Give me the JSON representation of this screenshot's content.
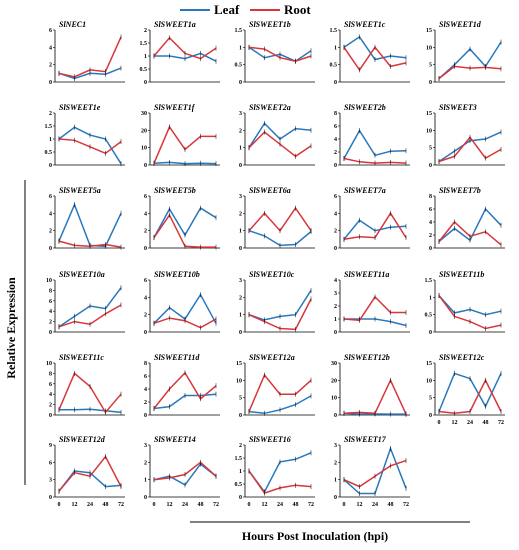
{
  "chart_data": {
    "type": "line",
    "legend": {
      "placement": "top-right",
      "entries": [
        {
          "name": "Leaf",
          "color": "#2878bd"
        },
        {
          "name": "Root",
          "color": "#d9363b"
        }
      ]
    },
    "ylabel": "Relative  Expression",
    "xlabel": "Hours Post Inoculation (hpi)",
    "x": [
      "0",
      "12",
      "24",
      "48",
      "72"
    ],
    "colors": {
      "leaf": "#2878bd",
      "root": "#d9363b"
    },
    "grid": false,
    "panels": [
      {
        "title": "SlNEC1",
        "yticks": [
          0,
          2,
          4,
          6
        ],
        "ylim": [
          0,
          6
        ],
        "leaf": [
          1.0,
          0.4,
          1.0,
          0.9,
          1.6
        ],
        "root": [
          1.0,
          0.6,
          1.4,
          1.2,
          5.2
        ]
      },
      {
        "title": "SlSWEET1a",
        "yticks": [
          0,
          0.5,
          1,
          1.5,
          2
        ],
        "ylim": [
          0,
          2
        ],
        "leaf": [
          1.0,
          1.0,
          0.9,
          1.1,
          0.8
        ],
        "root": [
          1.0,
          1.7,
          1.1,
          0.9,
          1.3
        ]
      },
      {
        "title": "SlSWEET1b",
        "yticks": [
          0,
          0.5,
          1,
          1.5
        ],
        "ylim": [
          0,
          1.5
        ],
        "leaf": [
          1.0,
          0.7,
          0.8,
          0.6,
          0.9
        ],
        "root": [
          1.0,
          0.95,
          0.7,
          0.6,
          0.75
        ]
      },
      {
        "title": "SlSWEET1c",
        "yticks": [
          0,
          0.5,
          1,
          1.5
        ],
        "ylim": [
          0,
          1.5
        ],
        "leaf": [
          1.0,
          1.3,
          0.65,
          0.75,
          0.7
        ],
        "root": [
          1.0,
          0.35,
          1.0,
          0.45,
          0.55
        ]
      },
      {
        "title": "SlSWEET1d",
        "yticks": [
          0,
          5,
          10,
          15
        ],
        "ylim": [
          0,
          15
        ],
        "leaf": [
          1.0,
          5.0,
          9.5,
          4.5,
          11.5
        ],
        "root": [
          1.0,
          4.5,
          4.0,
          4.2,
          3.8
        ]
      },
      {
        "title": "SlSWEET1e",
        "yticks": [
          0,
          0.5,
          1,
          1.5,
          2
        ],
        "ylim": [
          0,
          2
        ],
        "leaf": [
          1.0,
          1.45,
          1.15,
          1.0,
          0.05
        ],
        "root": [
          1.0,
          0.95,
          0.7,
          0.45,
          0.9
        ]
      },
      {
        "title": "SlSWEET1f",
        "yticks": [
          0,
          10,
          20,
          30
        ],
        "ylim": [
          0,
          30
        ],
        "leaf": [
          1.0,
          1.5,
          0.8,
          1.0,
          0.8
        ],
        "root": [
          1.0,
          22.0,
          9.0,
          16.5,
          16.5
        ]
      },
      {
        "title": "SlSWEET2a",
        "yticks": [
          0,
          1,
          2,
          3
        ],
        "ylim": [
          0,
          3
        ],
        "leaf": [
          1.0,
          2.4,
          1.5,
          2.1,
          2.0
        ],
        "root": [
          1.0,
          1.9,
          1.2,
          0.5,
          1.1
        ]
      },
      {
        "title": "SlSWEET2b",
        "yticks": [
          0,
          2,
          4,
          6,
          8
        ],
        "ylim": [
          0,
          8
        ],
        "leaf": [
          1.0,
          5.3,
          1.5,
          2.1,
          2.2
        ],
        "root": [
          1.0,
          0.5,
          0.3,
          0.4,
          0.3
        ]
      },
      {
        "title": "SlSWEET3",
        "yticks": [
          0,
          5,
          10,
          15
        ],
        "ylim": [
          0,
          15
        ],
        "leaf": [
          1.0,
          4.0,
          7.0,
          7.5,
          9.5
        ],
        "root": [
          1.0,
          2.5,
          8.0,
          2.0,
          4.5
        ]
      },
      {
        "title": "SlSWEET5a",
        "yticks": [
          0,
          2,
          4,
          6
        ],
        "ylim": [
          0,
          6
        ],
        "leaf": [
          0.8,
          5.0,
          0.3,
          0.2,
          4.0
        ],
        "root": [
          0.8,
          0.3,
          0.2,
          0.4,
          0.1
        ]
      },
      {
        "title": "SlSWEET5b",
        "yticks": [
          0,
          2,
          4,
          6
        ],
        "ylim": [
          0,
          6
        ],
        "leaf": [
          1.2,
          4.5,
          1.5,
          4.6,
          3.5
        ],
        "root": [
          1.2,
          3.8,
          0.2,
          0.1,
          0.1
        ]
      },
      {
        "title": "SlSWEET6a",
        "yticks": [
          0,
          1,
          2,
          3
        ],
        "ylim": [
          0,
          3
        ],
        "leaf": [
          1.0,
          0.7,
          0.15,
          0.2,
          0.95
        ],
        "root": [
          1.0,
          2.0,
          1.0,
          2.3,
          1.0
        ]
      },
      {
        "title": "SlSWEET7a",
        "yticks": [
          0,
          2,
          4,
          6
        ],
        "ylim": [
          0,
          6
        ],
        "leaf": [
          1.0,
          3.2,
          2.0,
          2.4,
          2.5
        ],
        "root": [
          1.0,
          1.3,
          1.2,
          4.0,
          1.2
        ]
      },
      {
        "title": "SlSWEET7b",
        "yticks": [
          0,
          2,
          4,
          6,
          8
        ],
        "ylim": [
          0,
          8
        ],
        "leaf": [
          1.0,
          3.0,
          1.2,
          6.0,
          3.5
        ],
        "root": [
          1.0,
          4.0,
          1.8,
          2.5,
          0.5
        ]
      },
      {
        "title": "SlSWEET10a",
        "yticks": [
          0,
          2,
          4,
          6,
          8,
          10
        ],
        "ylim": [
          0,
          10
        ],
        "leaf": [
          1.0,
          3.0,
          5.0,
          4.5,
          8.5
        ],
        "root": [
          1.0,
          2.0,
          1.5,
          3.5,
          5.2
        ]
      },
      {
        "title": "SlSWEET10b",
        "yticks": [
          0,
          2,
          4,
          6
        ],
        "ylim": [
          0,
          6
        ],
        "leaf": [
          1.0,
          2.8,
          1.5,
          4.3,
          1.0
        ],
        "root": [
          1.0,
          1.6,
          1.3,
          0.5,
          1.5
        ]
      },
      {
        "title": "SlSWEET10c",
        "yticks": [
          0,
          1,
          2,
          3
        ],
        "ylim": [
          0,
          3
        ],
        "leaf": [
          1.0,
          0.7,
          0.9,
          1.0,
          2.4
        ],
        "root": [
          1.0,
          0.6,
          0.2,
          0.15,
          1.9
        ]
      },
      {
        "title": "SlSWEET11a",
        "yticks": [
          0,
          1,
          2,
          3,
          4
        ],
        "ylim": [
          0,
          4
        ],
        "leaf": [
          1.0,
          1.0,
          1.0,
          0.8,
          0.5
        ],
        "root": [
          1.0,
          0.9,
          2.7,
          1.5,
          1.5
        ]
      },
      {
        "title": "SlSWEET11b",
        "yticks": [
          0,
          0.5,
          1,
          1.5
        ],
        "ylim": [
          0,
          1.5
        ],
        "leaf": [
          1.05,
          0.55,
          0.65,
          0.5,
          0.6
        ],
        "root": [
          1.05,
          0.45,
          0.3,
          0.1,
          0.2
        ]
      },
      {
        "title": "SlSWEET11c",
        "yticks": [
          0,
          2,
          4,
          6,
          8,
          10
        ],
        "ylim": [
          0,
          10
        ],
        "leaf": [
          1.0,
          1.0,
          1.1,
          0.8,
          0.5
        ],
        "root": [
          1.0,
          8.0,
          5.5,
          0.5,
          4.0
        ]
      },
      {
        "title": "SlSWEET11d",
        "yticks": [
          0,
          2,
          4,
          6,
          8
        ],
        "ylim": [
          0,
          8
        ],
        "leaf": [
          1.0,
          1.3,
          3.0,
          3.0,
          3.2
        ],
        "root": [
          1.0,
          4.0,
          6.5,
          2.5,
          4.5
        ]
      },
      {
        "title": "SlSWEET12a",
        "yticks": [
          0,
          5,
          10,
          15
        ],
        "ylim": [
          0,
          15
        ],
        "leaf": [
          1.0,
          0.5,
          1.5,
          3.0,
          5.5
        ],
        "root": [
          1.0,
          11.5,
          6.0,
          6.0,
          10.0
        ]
      },
      {
        "title": "SlSWEET12b",
        "yticks": [
          0,
          10,
          20,
          30
        ],
        "ylim": [
          0,
          30
        ],
        "leaf": [
          1.0,
          0.5,
          0.6,
          0.5,
          0.5
        ],
        "root": [
          1.0,
          1.5,
          1.0,
          20.0,
          0.5
        ]
      },
      {
        "title": "SlSWEET12c",
        "yticks": [
          0,
          5,
          10,
          15
        ],
        "ylim": [
          0,
          15
        ],
        "leaf": [
          1.0,
          12.0,
          10.5,
          2.5,
          12.0
        ],
        "root": [
          1.0,
          0.5,
          1.0,
          10.0,
          1.0
        ]
      },
      {
        "title": "SlSWEET12d",
        "yticks": [
          0,
          3,
          6,
          9
        ],
        "ylim": [
          0,
          9
        ],
        "leaf": [
          1.0,
          4.5,
          4.2,
          1.8,
          2.0
        ],
        "root": [
          1.0,
          4.2,
          3.6,
          7.0,
          1.8
        ]
      },
      {
        "title": "SlSWEET14",
        "yticks": [
          0,
          1,
          2,
          3
        ],
        "ylim": [
          0,
          3
        ],
        "leaf": [
          1.0,
          1.2,
          0.7,
          1.9,
          1.2
        ],
        "root": [
          1.0,
          1.1,
          1.3,
          2.0,
          1.2
        ]
      },
      {
        "title": "SlSWEET16",
        "yticks": [
          0,
          0.5,
          1,
          1.5,
          2
        ],
        "ylim": [
          0,
          2
        ],
        "leaf": [
          1.0,
          0.2,
          1.35,
          1.45,
          1.7
        ],
        "root": [
          1.0,
          0.15,
          0.35,
          0.45,
          0.4
        ]
      },
      {
        "title": "SlSWEET17",
        "yticks": [
          0,
          1,
          2,
          3
        ],
        "ylim": [
          0,
          3
        ],
        "leaf": [
          1.0,
          0.2,
          0.2,
          2.8,
          0.5
        ],
        "root": [
          1.0,
          0.6,
          1.2,
          1.8,
          2.1
        ]
      }
    ]
  }
}
